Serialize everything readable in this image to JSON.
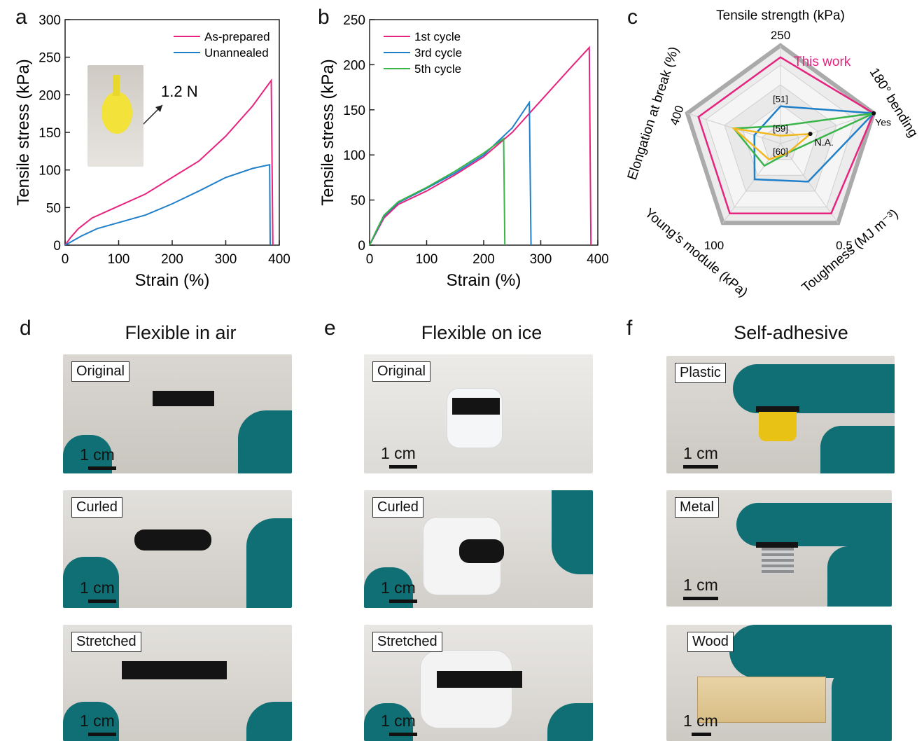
{
  "panels": {
    "a": "a",
    "b": "b",
    "c": "c",
    "d": "d",
    "e": "e",
    "f": "f"
  },
  "chart_data": [
    {
      "type": "line",
      "panel": "a",
      "xlabel": "Strain (%)",
      "ylabel": "Tensile stress (kPa)",
      "xlim": [
        0,
        400
      ],
      "ylim": [
        0,
        300
      ],
      "xticks": [
        "0",
        "100",
        "200",
        "300",
        "400"
      ],
      "yticks": [
        "0",
        "50",
        "100",
        "150",
        "200",
        "250",
        "300"
      ],
      "inset_label": "1.2 N",
      "series": [
        {
          "name": "As-prepared",
          "color": "#e6237e",
          "points": [
            [
              0,
              0
            ],
            [
              10,
              10
            ],
            [
              25,
              22
            ],
            [
              50,
              36
            ],
            [
              100,
              52
            ],
            [
              150,
              68
            ],
            [
              200,
              90
            ],
            [
              250,
              112
            ],
            [
              300,
              145
            ],
            [
              350,
              185
            ],
            [
              385,
              219
            ],
            [
              388,
              0
            ]
          ]
        },
        {
          "name": "Unannealed",
          "color": "#1f7fc9",
          "points": [
            [
              0,
              0
            ],
            [
              10,
              4
            ],
            [
              30,
              12
            ],
            [
              60,
              22
            ],
            [
              100,
              30
            ],
            [
              150,
              40
            ],
            [
              200,
              55
            ],
            [
              250,
              72
            ],
            [
              300,
              90
            ],
            [
              350,
              102
            ],
            [
              382,
              107
            ],
            [
              383,
              0
            ]
          ]
        }
      ]
    },
    {
      "type": "line",
      "panel": "b",
      "xlabel": "Strain (%)",
      "ylabel": "Tensile stress (kPa)",
      "xlim": [
        0,
        400
      ],
      "ylim": [
        0,
        250
      ],
      "xticks": [
        "0",
        "100",
        "200",
        "300",
        "400"
      ],
      "yticks": [
        "0",
        "50",
        "100",
        "150",
        "200",
        "250"
      ],
      "series": [
        {
          "name": "1st cycle",
          "color": "#e6237e",
          "points": [
            [
              0,
              0
            ],
            [
              10,
              12
            ],
            [
              25,
              30
            ],
            [
              50,
              45
            ],
            [
              100,
              60
            ],
            [
              150,
              78
            ],
            [
              200,
              98
            ],
            [
              250,
              125
            ],
            [
              300,
              160
            ],
            [
              350,
              195
            ],
            [
              385,
              219
            ],
            [
              388,
              0
            ]
          ]
        },
        {
          "name": "3rd cycle",
          "color": "#1f7fc9",
          "points": [
            [
              0,
              0
            ],
            [
              10,
              13
            ],
            [
              25,
              32
            ],
            [
              50,
              47
            ],
            [
              100,
              63
            ],
            [
              150,
              80
            ],
            [
              200,
              100
            ],
            [
              250,
              130
            ],
            [
              280,
              158
            ],
            [
              283,
              0
            ]
          ]
        },
        {
          "name": "5th cycle",
          "color": "#3ab54a",
          "points": [
            [
              0,
              0
            ],
            [
              10,
              14
            ],
            [
              25,
              33
            ],
            [
              50,
              48
            ],
            [
              100,
              64
            ],
            [
              150,
              82
            ],
            [
              200,
              102
            ],
            [
              235,
              118
            ],
            [
              237,
              0
            ]
          ]
        }
      ]
    },
    {
      "type": "radar",
      "panel": "c",
      "axes": [
        {
          "label": "Tensile strength (kPa)",
          "max_label": "250"
        },
        {
          "label": "180° bending",
          "max_label": ""
        },
        {
          "label": "Toughness (MJ m⁻³)",
          "max_label": "0.5"
        },
        {
          "label": "Young’s module (kPa)",
          "max_label": "100"
        },
        {
          "label": "Elongation at break (%)",
          "max_label": "400"
        }
      ],
      "annotations": {
        "this_work": "This work",
        "yes": "Yes",
        "na": "N.A.",
        "refs": [
          "[51]",
          "[59]",
          "[60]"
        ]
      },
      "series": [
        {
          "name": "This work",
          "color": "#e6237e",
          "values": [
            0.88,
            1.0,
            0.88,
            0.88,
            0.88
          ]
        },
        {
          "name": "[51]",
          "color": "#1f7fc9",
          "values": [
            0.38,
            1.0,
            0.48,
            0.45,
            0.28
          ]
        },
        {
          "name": "[59]",
          "color": "#3ab54a",
          "values": [
            0.18,
            1.0,
            0.12,
            0.28,
            0.5
          ]
        },
        {
          "name": "[60]",
          "color": "#f2b81e",
          "values": [
            0.08,
            0.32,
            0.12,
            0.2,
            0.5
          ]
        }
      ]
    }
  ],
  "photo_columns": [
    {
      "title": "Flexible in air",
      "photos": [
        {
          "label": "Original",
          "scale": "1 cm"
        },
        {
          "label": "Curled",
          "scale": "1 cm"
        },
        {
          "label": "Stretched",
          "scale": "1 cm"
        }
      ]
    },
    {
      "title": "Flexible on ice",
      "photos": [
        {
          "label": "Original",
          "scale": "1 cm"
        },
        {
          "label": "Curled",
          "scale": "1 cm"
        },
        {
          "label": "Stretched",
          "scale": "1 cm"
        }
      ]
    },
    {
      "title": "Self-adhesive",
      "photos": [
        {
          "label": "Plastic",
          "scale": "1 cm"
        },
        {
          "label": "Metal",
          "scale": "1 cm"
        },
        {
          "label": "Wood",
          "scale": "1 cm"
        }
      ]
    }
  ]
}
